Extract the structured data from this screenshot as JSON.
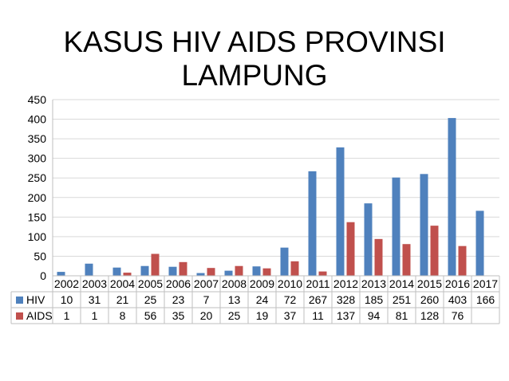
{
  "title": "KASUS HIV AIDS PROVINSI LAMPUNG",
  "chart_data": {
    "type": "bar",
    "title": "KASUS HIV AIDS PROVINSI LAMPUNG",
    "categories": [
      "2002",
      "2003",
      "2004",
      "2005",
      "2006",
      "2007",
      "2008",
      "2009",
      "2010",
      "2011",
      "2012",
      "2013",
      "2014",
      "2015",
      "2016",
      "2017"
    ],
    "series": [
      {
        "name": "HIV",
        "color": "#4F81BD",
        "values": [
          10,
          31,
          21,
          25,
          23,
          7,
          13,
          24,
          72,
          267,
          328,
          185,
          251,
          260,
          403,
          166
        ]
      },
      {
        "name": "AIDS",
        "color": "#C0504D",
        "values": [
          1,
          1,
          8,
          56,
          35,
          20,
          25,
          19,
          37,
          11,
          137,
          94,
          81,
          128,
          76,
          null
        ]
      }
    ],
    "ylim": [
      0,
      450
    ],
    "yticks": [
      0,
      50,
      100,
      150,
      200,
      250,
      300,
      350,
      400,
      450
    ],
    "grid": true,
    "legend": "data-table"
  }
}
